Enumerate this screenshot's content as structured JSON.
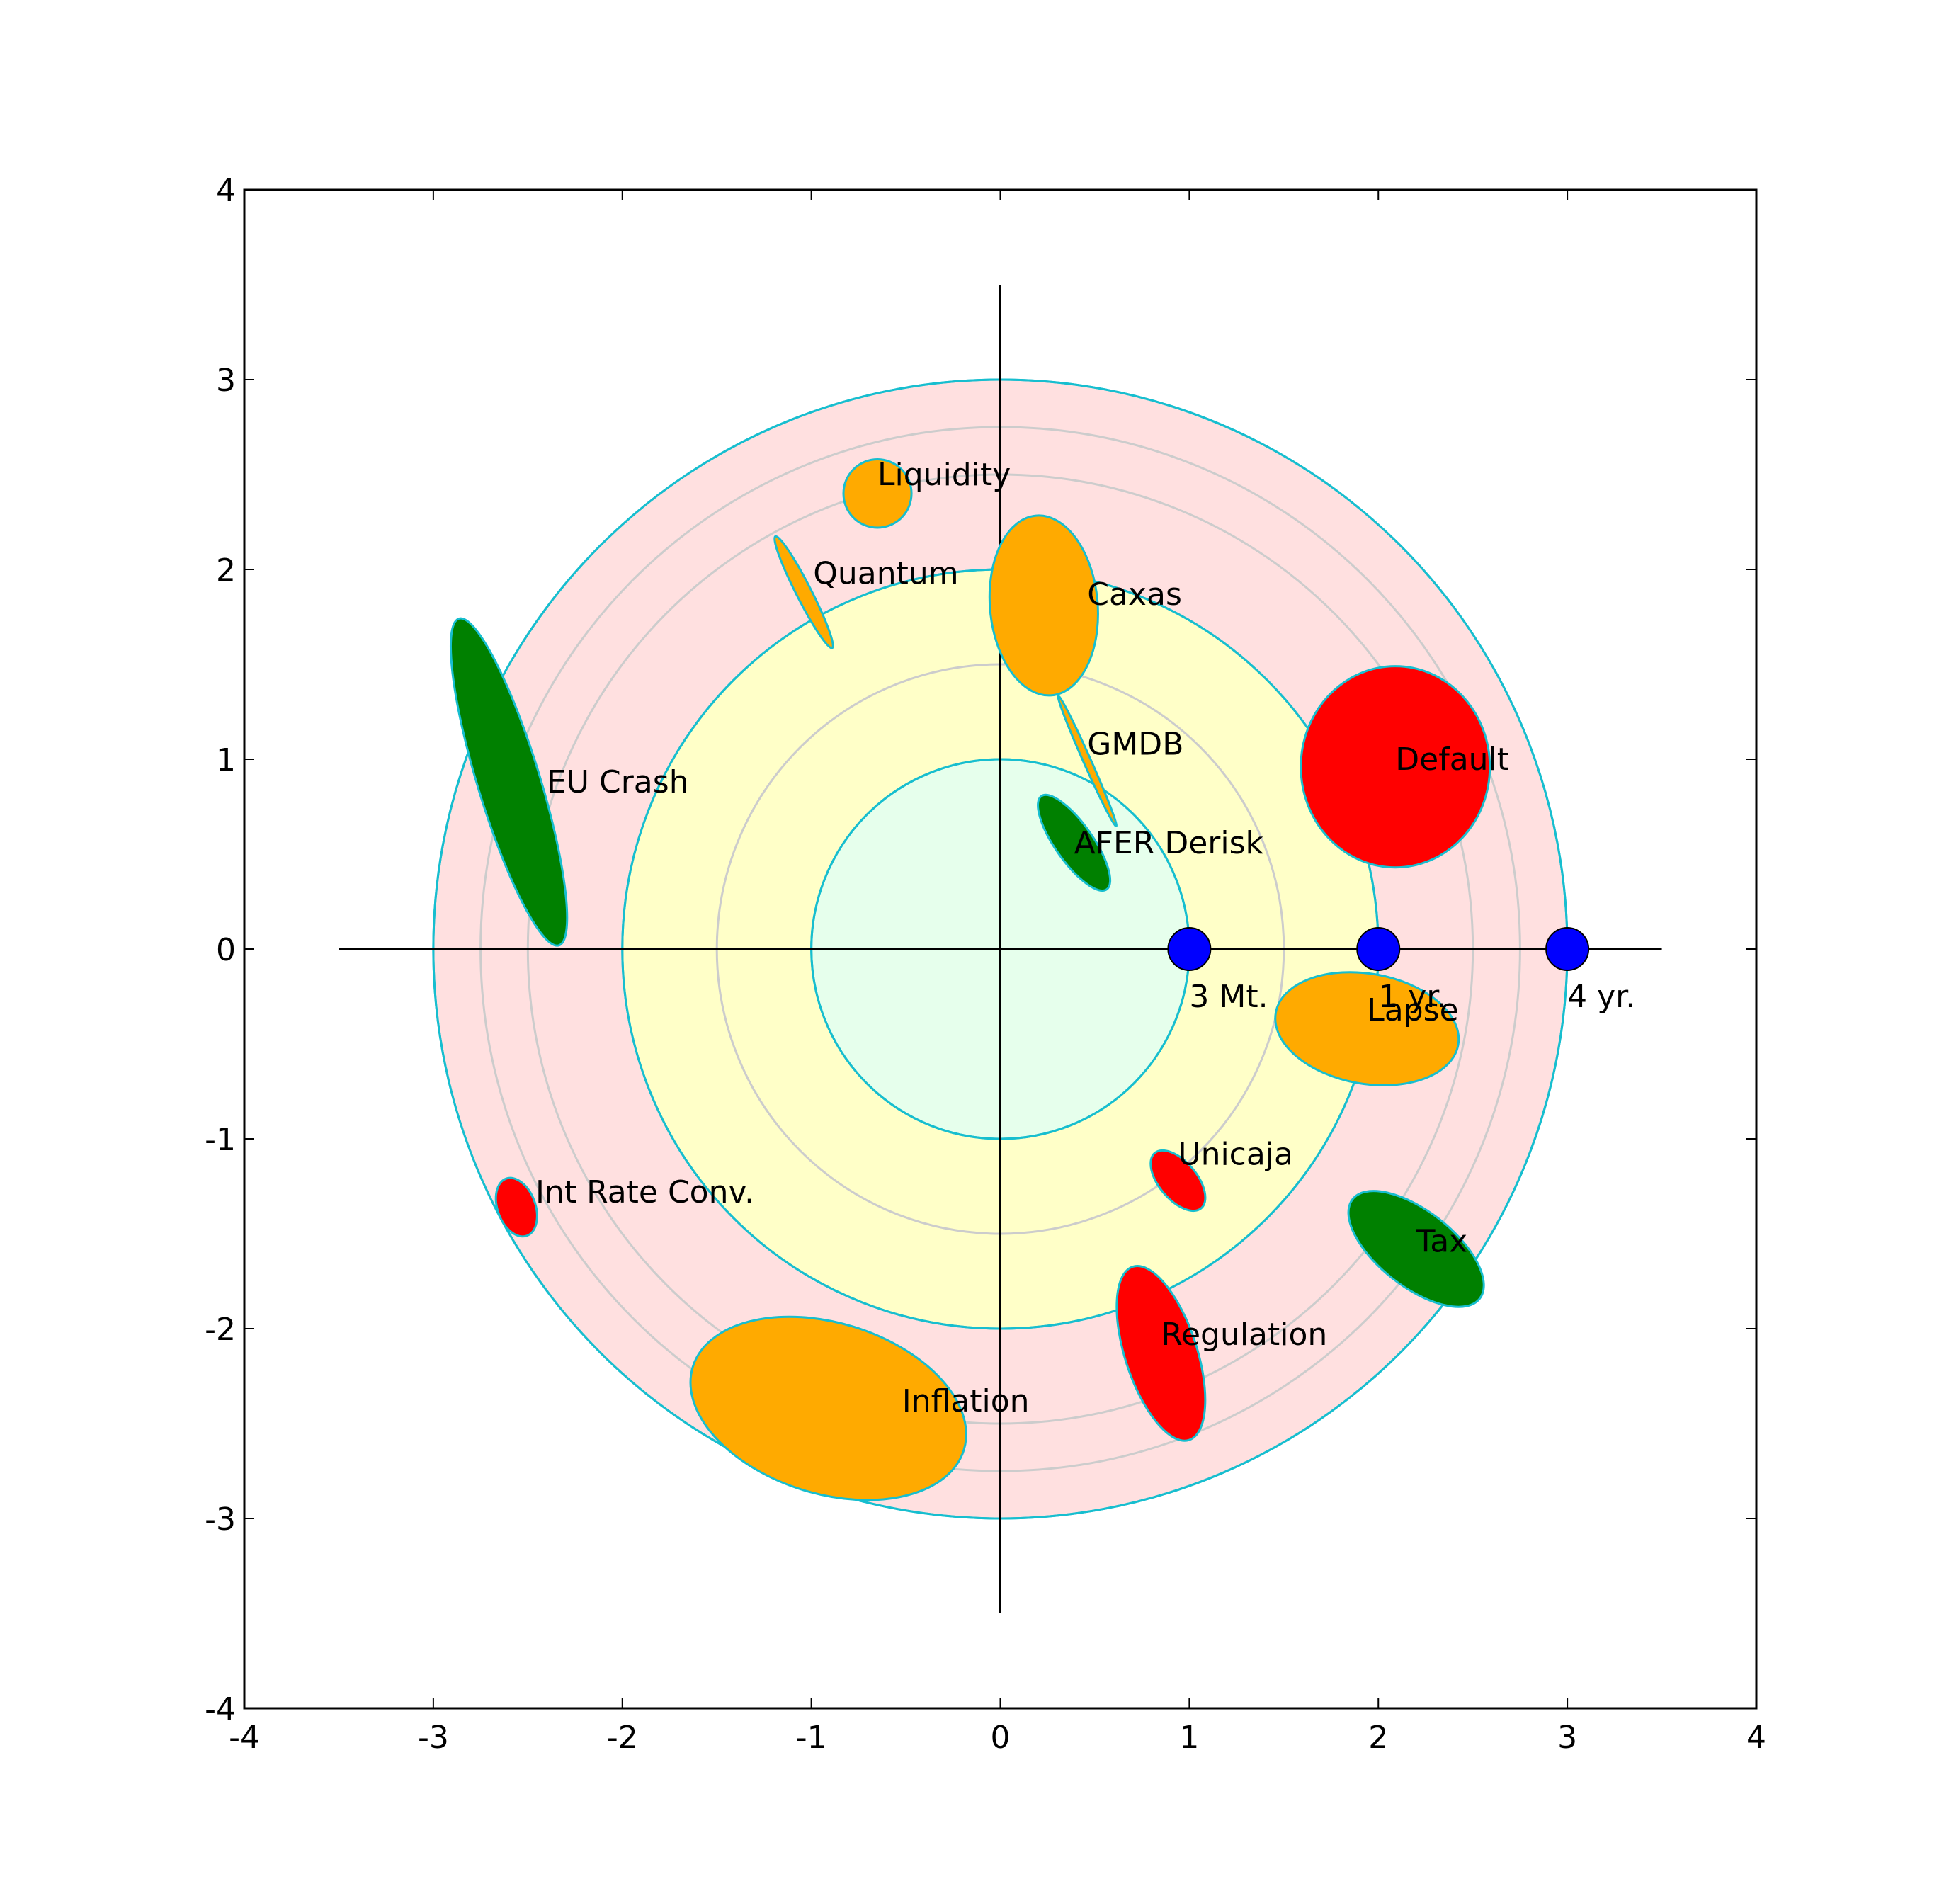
{
  "chart_data": {
    "type": "scatter",
    "title": "",
    "xlabel": "",
    "ylabel": "",
    "xlim": [
      -4,
      4
    ],
    "ylim": [
      -4,
      4
    ],
    "grid": false,
    "xticks": [
      "-4",
      "-3",
      "-2",
      "-1",
      "0",
      "1",
      "2",
      "3",
      "4"
    ],
    "yticks": [
      "-4",
      "-3",
      "-2",
      "-1",
      "0",
      "1",
      "2",
      "3",
      "4"
    ],
    "zones": [
      {
        "radius": 3.0,
        "color": "#ffe0e0"
      },
      {
        "radius": 2.0,
        "color": "#ffffc8"
      },
      {
        "radius": 1.0,
        "color": "#e6ffec"
      }
    ],
    "guide_rings": [
      2.5,
      2.75,
      1.5
    ],
    "ring_outline_color": "#17becf",
    "guide_ring_color": "#cccccc",
    "axis_cross_extent": 3.5,
    "horizon_markers": [
      {
        "x": 1,
        "label": "3 Mt."
      },
      {
        "x": 2,
        "label": "1 yr."
      },
      {
        "x": 3,
        "label": "4 yr."
      }
    ],
    "marker_color": "#0000ff",
    "risks": [
      {
        "label": "Liquidity",
        "cx": -0.65,
        "cy": 2.4,
        "w": 0.36,
        "h": 0.36,
        "angle": 0,
        "color": "#ffaa00"
      },
      {
        "label": "Quantum",
        "cx": -1.04,
        "cy": 1.88,
        "w": 0.08,
        "h": 0.66,
        "angle": -27,
        "color": "#ffaa00"
      },
      {
        "label": "Caxas",
        "cx": 0.23,
        "cy": 1.81,
        "w": 0.57,
        "h": 0.95,
        "angle": -5,
        "color": "#ffaa00"
      },
      {
        "label": "EU Crash",
        "cx": -2.6,
        "cy": 0.88,
        "w": 0.33,
        "h": 1.8,
        "angle": -17,
        "color": "#008000"
      },
      {
        "label": "GMDB",
        "cx": 0.46,
        "cy": 0.99,
        "w": 0.04,
        "h": 0.75,
        "angle": -24,
        "color": "#ffaa00"
      },
      {
        "label": "AFER Derisk",
        "cx": 0.39,
        "cy": 0.56,
        "w": 0.2,
        "h": 0.6,
        "angle": -35,
        "color": "#008000"
      },
      {
        "label": "Default",
        "cx": 2.09,
        "cy": 0.96,
        "w": 1.0,
        "h": 1.06,
        "angle": 0,
        "color": "#ff0000"
      },
      {
        "label": "Lapse",
        "cx": 1.94,
        "cy": -0.42,
        "w": 0.98,
        "h": 0.58,
        "angle": 10,
        "color": "#ffaa00"
      },
      {
        "label": "Unicaja",
        "cx": 0.94,
        "cy": -1.22,
        "w": 0.2,
        "h": 0.38,
        "angle": -40,
        "color": "#ff0000"
      },
      {
        "label": "Int Rate Conv.",
        "cx": -2.56,
        "cy": -1.36,
        "w": 0.2,
        "h": 0.32,
        "angle": -20,
        "color": "#ff0000"
      },
      {
        "label": "Tax",
        "cx": 2.2,
        "cy": -1.58,
        "w": 0.4,
        "h": 0.85,
        "angle": -52,
        "color": "#008000"
      },
      {
        "label": "Regulation",
        "cx": 0.85,
        "cy": -2.13,
        "w": 0.38,
        "h": 0.96,
        "angle": -18,
        "color": "#ff0000"
      },
      {
        "label": "Inflation",
        "cx": -0.91,
        "cy": -2.42,
        "w": 1.5,
        "h": 0.9,
        "angle": 17,
        "color": "#ffaa00"
      }
    ],
    "label_offsets": {
      "Liquidity": [
        0.0,
        0.1
      ],
      "Quantum": [
        0.05,
        0.1
      ],
      "Caxas": [
        0.23,
        0.06
      ],
      "EU Crash": [
        0.2,
        0.0
      ],
      "GMDB": [
        0.0,
        0.09
      ],
      "AFER Derisk": [
        0.0,
        0.0
      ],
      "Default": [
        0.0,
        0.04
      ],
      "Lapse": [
        0.0,
        0.1
      ],
      "Unicaja": [
        0.0,
        0.14
      ],
      "Int Rate Conv.": [
        0.1,
        0.08
      ],
      "Tax": [
        0.0,
        0.04
      ],
      "Regulation": [
        0.0,
        0.1
      ],
      "Inflation": [
        0.39,
        0.04
      ]
    }
  }
}
